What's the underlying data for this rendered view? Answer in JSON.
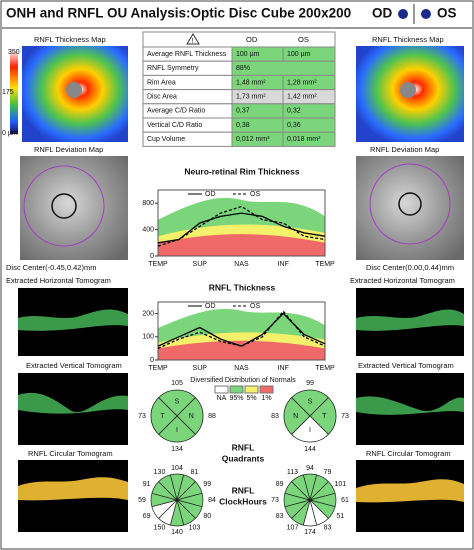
{
  "header": {
    "title": "ONH and RNFL OU Analysis:Optic Disc Cube 200x200",
    "od": "OD",
    "os": "OS"
  },
  "table": {
    "columns": [
      "OD",
      "OS"
    ],
    "rows": [
      {
        "label": "Average RNFL Thickness",
        "od": "100 µm",
        "os": "100 µm",
        "color": "#7bd67b"
      },
      {
        "label": "RNFL Symmetry",
        "value": "88%",
        "color": "#7bd67b"
      },
      {
        "label": "Rim Area",
        "od": "1,48 mm²",
        "os": "1,28 mm²",
        "color": "#7bd67b"
      },
      {
        "label": "Disc Area",
        "od": "1,73 mm²",
        "os": "1,42 mm²",
        "color": "#d9d9d9"
      },
      {
        "label": "Average C/D Ratio",
        "od": "0,37",
        "os": "0,32",
        "color": "#7bd67b"
      },
      {
        "label": "Vertical C/D Ratio",
        "od": "0,38",
        "os": "0,36",
        "color": "#7bd67b"
      },
      {
        "label": "Cup Volume",
        "od": "0,012 mm³",
        "os": "0,018 mm³",
        "color": "#7bd67b"
      }
    ]
  },
  "left": {
    "map_title": "RNFL Thickness Map",
    "scale": [
      350,
      175,
      "0 µm"
    ],
    "deviation_title": "RNFL Deviation Map",
    "disc_center": "Disc Center(-0.45,0.42)mm",
    "horizontal": "Extracted Horizontal Tomogram",
    "vertical": "Extracted Vertical Tomogram",
    "circular": "RNFL Circular Tomogram"
  },
  "right": {
    "map_title": "RNFL Thickness Map",
    "deviation_title": "RNFL Deviation Map",
    "disc_center": "Disc Center(0.00,0.44)mm",
    "horizontal": "Extracted Horizontal Tomogram",
    "vertical": "Extracted Vertical Tomogram",
    "circular": "RNFL Circular Tomogram"
  },
  "rim_chart": {
    "type": "line",
    "title": "Neuro-retinal Rim Thickness",
    "categories": [
      "TEMP",
      null,
      "SUP",
      null,
      "NAS",
      null,
      "INF",
      null,
      "TEMP"
    ],
    "ylim": [
      0,
      1000
    ],
    "yticks": [
      0,
      400,
      800
    ],
    "series": [
      {
        "name": "OD",
        "color": "#000000",
        "values": [
          200,
          250,
          500,
          600,
          650,
          600,
          450,
          350,
          300
        ]
      },
      {
        "name": "OS",
        "color": "#000000",
        "values": [
          150,
          250,
          450,
          650,
          750,
          550,
          500,
          300,
          250
        ]
      }
    ]
  },
  "rnfl_chart": {
    "type": "line",
    "title": "RNFL Thickness",
    "categories": [
      "TEMP",
      null,
      "SUP",
      null,
      "NAS",
      null,
      "INF",
      null,
      "TEMP"
    ],
    "ylim": [
      0,
      250
    ],
    "yticks": [
      0,
      100,
      200
    ],
    "series": [
      {
        "name": "OD",
        "color": "#000000",
        "values": [
          60,
          100,
          140,
          90,
          60,
          110,
          200,
          110,
          70
        ]
      },
      {
        "name": "OS",
        "color": "#000000",
        "values": [
          50,
          90,
          120,
          80,
          60,
          100,
          210,
          100,
          60
        ]
      }
    ]
  },
  "legend": {
    "title": "Diversified Distribution of Normals",
    "items": [
      {
        "label": "NA",
        "color": "#ffffff"
      },
      {
        "label": "95%",
        "color": "#7bd67b"
      },
      {
        "label": "5%",
        "color": "#f5f06a"
      },
      {
        "label": "1%",
        "color": "#f06a6a"
      }
    ]
  },
  "quadrants": {
    "title": [
      "RNFL",
      "Quadrants"
    ],
    "od": {
      "labels": [
        "S",
        "N",
        "I",
        "T"
      ],
      "values": [
        105,
        88,
        134,
        73
      ],
      "colors": [
        "#7bd67b",
        "#7bd67b",
        "#7bd67b",
        "#7bd67b"
      ]
    },
    "os": {
      "labels": [
        "S",
        "T",
        "I",
        "N"
      ],
      "values": [
        99,
        73,
        144,
        83
      ],
      "colors": [
        "#7bd67b",
        "#7bd67b",
        "#ffffff",
        "#7bd67b"
      ]
    }
  },
  "clock_hours": {
    "title": [
      "RNFL",
      "ClockHours"
    ],
    "od": {
      "values": [
        104,
        81,
        99,
        84,
        80,
        103,
        140,
        150,
        69,
        59,
        91,
        130
      ],
      "colors": [
        "#7bd67b",
        "#7bd67b",
        "#7bd67b",
        "#7bd67b",
        "#7bd67b",
        "#7bd67b",
        "#7bd67b",
        "#ffffff",
        "#ffffff",
        "#7bd67b",
        "#7bd67b",
        "#7bd67b"
      ]
    },
    "os": {
      "values": [
        94,
        79,
        101,
        61,
        51,
        83,
        174,
        107,
        83,
        73,
        89,
        113
      ],
      "colors": [
        "#7bd67b",
        "#7bd67b",
        "#7bd67b",
        "#7bd67b",
        "#7bd67b",
        "#ffffff",
        "#ffffff",
        "#7bd67b",
        "#7bd67b",
        "#7bd67b",
        "#7bd67b",
        "#7bd67b"
      ]
    }
  }
}
